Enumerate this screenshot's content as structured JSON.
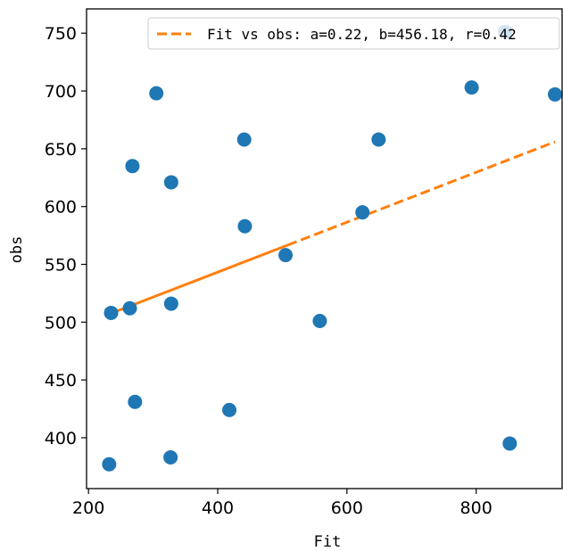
{
  "chart_data": {
    "type": "scatter",
    "xlabel": "Fit",
    "ylabel": "obs",
    "xlim": [
      197,
      933
    ],
    "ylim": [
      356,
      771
    ],
    "xticks": [
      200,
      400,
      600,
      800
    ],
    "yticks": [
      400,
      450,
      500,
      550,
      600,
      650,
      700,
      750
    ],
    "grid": false,
    "legend_position": "top-right",
    "colors": {
      "points": "#1f77b4",
      "fit": "#ff7f0e"
    },
    "points": [
      {
        "x": 232,
        "y": 377
      },
      {
        "x": 235,
        "y": 508
      },
      {
        "x": 264,
        "y": 512
      },
      {
        "x": 268,
        "y": 635
      },
      {
        "x": 272,
        "y": 431
      },
      {
        "x": 305,
        "y": 698
      },
      {
        "x": 327,
        "y": 383
      },
      {
        "x": 328,
        "y": 516
      },
      {
        "x": 328,
        "y": 621
      },
      {
        "x": 418,
        "y": 424
      },
      {
        "x": 441,
        "y": 658
      },
      {
        "x": 442,
        "y": 583
      },
      {
        "x": 505,
        "y": 558
      },
      {
        "x": 558,
        "y": 501
      },
      {
        "x": 624,
        "y": 595
      },
      {
        "x": 649,
        "y": 658
      },
      {
        "x": 793,
        "y": 703
      },
      {
        "x": 845,
        "y": 751
      },
      {
        "x": 852,
        "y": 395
      },
      {
        "x": 922,
        "y": 697
      }
    ],
    "fit_line": {
      "label": "Fit vs obs: a=0.22, b=456.18, r=0.42",
      "x": [
        232,
        922
      ],
      "y": [
        507,
        656
      ]
    }
  }
}
